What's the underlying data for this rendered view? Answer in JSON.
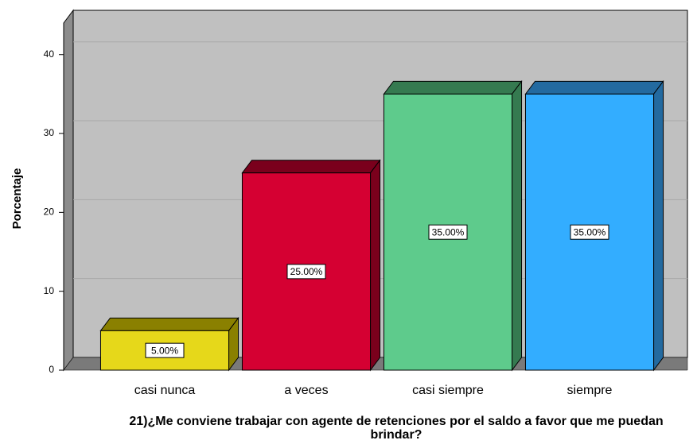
{
  "chart_data": {
    "type": "bar3d",
    "xlabel": "21)¿Me conviene trabajar con agente de retenciones por el saldo a favor que me puedan brindar?",
    "ylabel": "Porcentaje",
    "categories": [
      "casi nunca",
      "a veces",
      "casi siempre",
      "siempre"
    ],
    "values": [
      5,
      25,
      35,
      35
    ],
    "value_labels": [
      "5.00%",
      "25.00%",
      "35.00%",
      "35.00%"
    ],
    "colors": [
      "#e6d81a",
      "#d50032",
      "#5ecb8c",
      "#33adff"
    ],
    "side_colors": [
      "#8a8000",
      "#7a001c",
      "#357a50",
      "#236aa0"
    ],
    "ylim": [
      0,
      44
    ],
    "yticks": [
      0,
      10,
      20,
      30,
      40
    ],
    "grid": true
  }
}
